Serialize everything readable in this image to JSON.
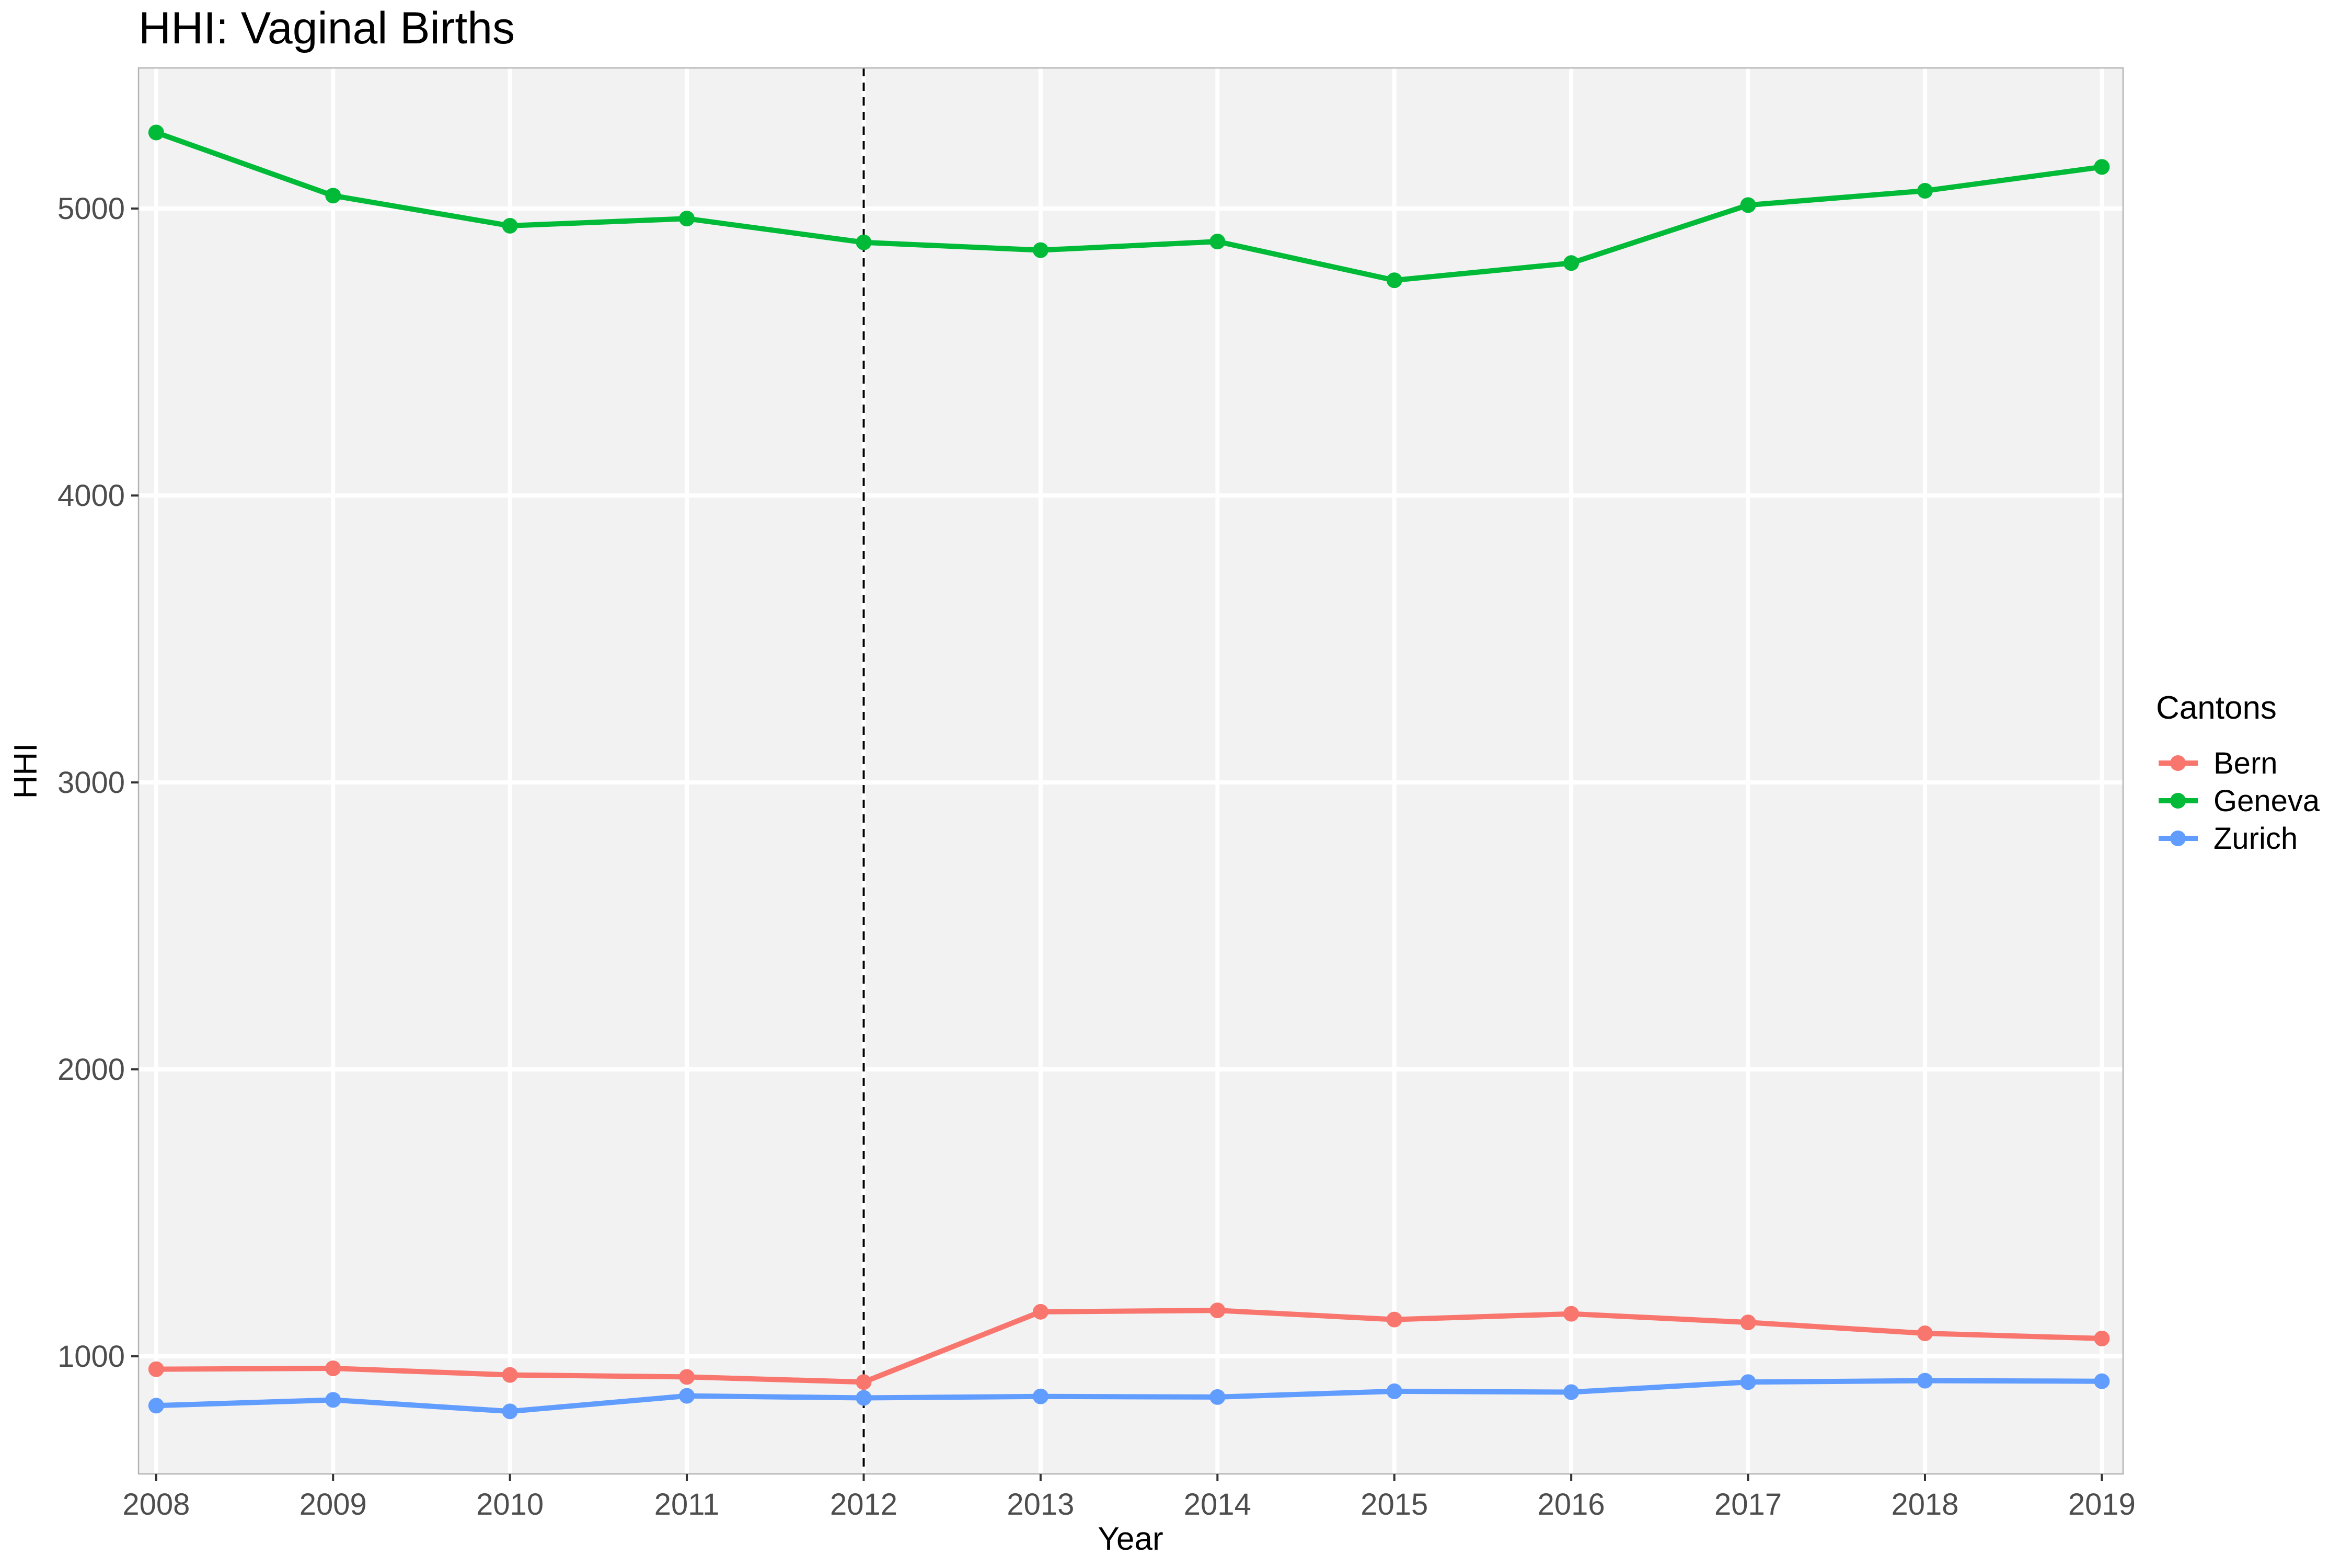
{
  "chart_data": {
    "type": "line",
    "title": "HHI: Vaginal Births",
    "xlabel": "Year",
    "ylabel": "HHI",
    "x": [
      2008,
      2009,
      2010,
      2011,
      2012,
      2013,
      2014,
      2015,
      2016,
      2017,
      2018,
      2019
    ],
    "xlim": [
      2007.9,
      2019.12
    ],
    "ylim": [
      590,
      5490
    ],
    "y_ticks": [
      1000,
      2000,
      3000,
      4000,
      5000
    ],
    "vline": {
      "x": 2012,
      "style": "dashed",
      "color": "#000000"
    },
    "grid": true,
    "panel_background": "#f2f2f2",
    "legend": {
      "title": "Cantons",
      "position": "right"
    },
    "series": [
      {
        "name": "Bern",
        "color": "#f8766d",
        "values": [
          955,
          958,
          935,
          928,
          910,
          1155,
          1160,
          1128,
          1148,
          1118,
          1080,
          1062
        ]
      },
      {
        "name": "Geneva",
        "color": "#00ba38",
        "values": [
          5265,
          5045,
          4940,
          4965,
          4882,
          4855,
          4885,
          4750,
          4810,
          5012,
          5062,
          5145
        ]
      },
      {
        "name": "Zurich",
        "color": "#619cff",
        "values": [
          828,
          848,
          808,
          862,
          855,
          860,
          858,
          878,
          875,
          910,
          915,
          913
        ]
      }
    ]
  }
}
